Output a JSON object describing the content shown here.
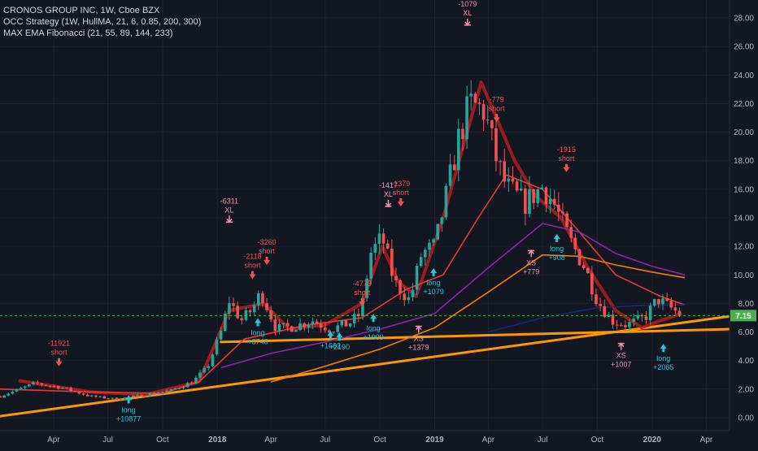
{
  "legend": {
    "title": "CRONOS GROUP INC, 1W, Cboe BZX",
    "indicator1": "OCC Strategy (1W, HullMA, 21, 6, 0.85, 200, 300)",
    "indicator2": "MAX EMA Fibonacci (21, 55, 89, 144, 233)"
  },
  "colors": {
    "background": "#131722",
    "grid": "#1e2230",
    "axis_text": "#b2b5be",
    "up": "#26a69a",
    "down": "#ef5350",
    "hull": "#b71c1c",
    "ema21": "#e53935",
    "ema55": "#8e24aa",
    "ema89": "#f57c00",
    "ema144": "#1a237e",
    "trendline": "#ff9800",
    "price_line": "#4caf50",
    "long_label": "#26c6da",
    "short_label": "#ef5350",
    "exit_label": "#f48fb1"
  },
  "chart_data": {
    "type": "candlestick",
    "symbol": "CRONOS GROUP INC",
    "interval": "1W",
    "exchange": "Cboe BZX",
    "y_axis": {
      "min": -0.8,
      "max": 28.8,
      "ticks": [
        "28.00",
        "26.00",
        "24.00",
        "22.00",
        "20.00",
        "18.00",
        "16.00",
        "14.00",
        "12.00",
        "10.00",
        "8.00",
        "6.00",
        "4.00",
        "2.00",
        "0.00"
      ]
    },
    "x_axis": {
      "tick_labels": [
        "Apr",
        "Jul",
        "Oct",
        "2018",
        "Apr",
        "Jul",
        "Oct",
        "2019",
        "Apr",
        "Jul",
        "Oct",
        "2020",
        "Apr"
      ],
      "tick_dates": [
        "2017-04-01",
        "2017-07-01",
        "2017-10-01",
        "2018-01-01",
        "2018-04-01",
        "2018-07-01",
        "2018-10-01",
        "2019-01-01",
        "2019-04-01",
        "2019-07-01",
        "2019-10-01",
        "2020-01-01",
        "2020-04-01"
      ],
      "start_date": "2017-01-01",
      "end_date": "2020-05-10"
    },
    "last_price": 7.15,
    "last_price_label": "7.15",
    "price_path": [
      [
        "2017-01-01",
        1.5
      ],
      [
        "2017-03-01",
        2.4
      ],
      [
        "2017-04-15",
        2.1
      ],
      [
        "2017-06-01",
        1.5
      ],
      [
        "2017-07-15",
        1.3
      ],
      [
        "2017-09-01",
        1.6
      ],
      [
        "2017-10-15",
        1.9
      ],
      [
        "2017-11-20",
        2.5
      ],
      [
        "2017-12-15",
        3.5
      ],
      [
        "2018-01-07",
        6.0
      ],
      [
        "2018-01-21",
        8.2
      ],
      [
        "2018-02-10",
        6.8
      ],
      [
        "2018-03-01",
        7.6
      ],
      [
        "2018-03-15",
        8.8
      ],
      [
        "2018-04-10",
        6.2
      ],
      [
        "2018-05-10",
        6.4
      ],
      [
        "2018-06-10",
        6.8
      ],
      [
        "2018-07-10",
        6.2
      ],
      [
        "2018-08-10",
        6.6
      ],
      [
        "2018-08-30",
        7.3
      ],
      [
        "2018-09-15",
        11.5
      ],
      [
        "2018-10-05",
        12.6
      ],
      [
        "2018-10-25",
        9.5
      ],
      [
        "2018-11-20",
        8.2
      ],
      [
        "2018-12-10",
        11.5
      ],
      [
        "2019-01-01",
        12.0
      ],
      [
        "2019-01-20",
        15.5
      ],
      [
        "2019-02-10",
        19.5
      ],
      [
        "2019-03-01",
        22.0
      ],
      [
        "2019-03-25",
        21.5
      ],
      [
        "2019-04-15",
        18.0
      ],
      [
        "2019-05-01",
        16.2
      ],
      [
        "2019-06-01",
        15.0
      ],
      [
        "2019-07-01",
        16.2
      ],
      [
        "2019-07-20",
        15.0
      ],
      [
        "2019-08-15",
        12.5
      ],
      [
        "2019-09-10",
        10.5
      ],
      [
        "2019-10-01",
        8.2
      ],
      [
        "2019-10-25",
        6.8
      ],
      [
        "2019-11-20",
        6.5
      ],
      [
        "2019-12-20",
        7.0
      ],
      [
        "2020-01-10",
        8.3
      ],
      [
        "2020-02-20",
        7.15
      ]
    ],
    "series": [
      {
        "name": "HullMA",
        "type": "hull",
        "points": [
          [
            "2017-02-01",
            2.6
          ],
          [
            "2017-06-01",
            1.8
          ],
          [
            "2017-09-01",
            1.6
          ],
          [
            "2017-12-01",
            2.5
          ],
          [
            "2018-01-21",
            7.5
          ],
          [
            "2018-03-20",
            8.0
          ],
          [
            "2018-05-01",
            6.2
          ],
          [
            "2018-07-01",
            6.5
          ],
          [
            "2018-09-01",
            8.0
          ],
          [
            "2018-10-05",
            12.0
          ],
          [
            "2018-11-01",
            9.5
          ],
          [
            "2018-12-01",
            8.5
          ],
          [
            "2019-01-15",
            14.0
          ],
          [
            "2019-03-20",
            23.5
          ],
          [
            "2019-05-15",
            18.0
          ],
          [
            "2019-06-20",
            15.5
          ],
          [
            "2019-08-01",
            14.0
          ],
          [
            "2019-09-15",
            10.5
          ],
          [
            "2019-11-01",
            7.5
          ],
          [
            "2019-12-15",
            6.3
          ],
          [
            "2020-01-15",
            6.8
          ],
          [
            "2020-02-20",
            7.3
          ]
        ]
      },
      {
        "name": "EMA 21",
        "type": "ema",
        "points": [
          [
            "2017-01-01",
            2.0
          ],
          [
            "2017-06-01",
            1.8
          ],
          [
            "2017-10-01",
            1.7
          ],
          [
            "2017-12-01",
            2.5
          ],
          [
            "2018-02-15",
            5.5
          ],
          [
            "2018-06-01",
            6.5
          ],
          [
            "2018-09-01",
            7.0
          ],
          [
            "2018-11-15",
            9.0
          ],
          [
            "2019-01-15",
            10.0
          ],
          [
            "2019-03-15",
            14.0
          ],
          [
            "2019-05-01",
            17.0
          ],
          [
            "2019-07-01",
            16.0
          ],
          [
            "2019-09-01",
            13.0
          ],
          [
            "2019-11-01",
            10.0
          ],
          [
            "2020-01-15",
            8.5
          ],
          [
            "2020-02-25",
            7.9
          ]
        ]
      },
      {
        "name": "EMA 55",
        "type": "ema",
        "points": [
          [
            "2018-01-07",
            3.5
          ],
          [
            "2018-04-01",
            4.5
          ],
          [
            "2018-07-01",
            5.3
          ],
          [
            "2018-10-01",
            6.2
          ],
          [
            "2019-01-01",
            7.3
          ],
          [
            "2019-04-01",
            10.5
          ],
          [
            "2019-07-01",
            13.6
          ],
          [
            "2019-09-01",
            13.0
          ],
          [
            "2019-11-01",
            11.5
          ],
          [
            "2020-01-01",
            10.6
          ],
          [
            "2020-02-25",
            10.0
          ]
        ]
      },
      {
        "name": "EMA 89",
        "type": "ema",
        "points": [
          [
            "2018-04-01",
            2.5
          ],
          [
            "2018-07-01",
            3.6
          ],
          [
            "2018-10-01",
            4.8
          ],
          [
            "2019-01-01",
            6.3
          ],
          [
            "2019-04-01",
            8.8
          ],
          [
            "2019-07-01",
            11.4
          ],
          [
            "2019-09-01",
            11.3
          ],
          [
            "2019-11-01",
            10.7
          ],
          [
            "2020-01-01",
            10.2
          ],
          [
            "2020-02-25",
            9.8
          ]
        ]
      },
      {
        "name": "EMA 144",
        "type": "ema",
        "points": [
          [
            "2019-04-01",
            6.0
          ],
          [
            "2019-07-01",
            7.0
          ],
          [
            "2019-10-01",
            7.7
          ],
          [
            "2020-01-01",
            7.9
          ],
          [
            "2020-02-25",
            7.9
          ]
        ]
      }
    ],
    "trendlines": [
      {
        "from": [
          "2017-01-01",
          0.1
        ],
        "to": [
          "2020-05-10",
          7.1
        ]
      },
      {
        "from": [
          "2018-01-07",
          5.3
        ],
        "to": [
          "2020-05-10",
          6.2
        ]
      }
    ],
    "annotations": [
      {
        "kind": "short",
        "date": "2017-04-10",
        "value": 3.6,
        "lines": [
          "-11921",
          "short"
        ]
      },
      {
        "kind": "long",
        "date": "2017-08-05",
        "value": 1.0,
        "lines": [
          "long",
          "+10877"
        ]
      },
      {
        "kind": "exit",
        "date": "2018-01-21",
        "value": 13.7,
        "lines": [
          "-6311",
          "XL"
        ]
      },
      {
        "kind": "short",
        "date": "2018-03-01",
        "value": 9.7,
        "lines": [
          "-2118",
          "short"
        ]
      },
      {
        "kind": "short",
        "date": "2018-03-25",
        "value": 10.7,
        "lines": [
          "-3260",
          "short"
        ]
      },
      {
        "kind": "long",
        "date": "2018-03-10",
        "value": 6.4,
        "lines": [
          "long",
          "+3746"
        ]
      },
      {
        "kind": "long",
        "date": "2018-07-10",
        "value": 5.5,
        "lines": [
          "+1662"
        ]
      },
      {
        "kind": "long",
        "date": "2018-07-25",
        "value": 5.4,
        "lines": [
          "+2190"
        ]
      },
      {
        "kind": "short",
        "date": "2018-09-01",
        "value": 7.8,
        "lines": [
          "-4773",
          "short"
        ]
      },
      {
        "kind": "long",
        "date": "2018-09-20",
        "value": 6.7,
        "lines": [
          "long",
          "+1999"
        ]
      },
      {
        "kind": "exit",
        "date": "2018-10-15",
        "value": 14.8,
        "lines": [
          "-1417",
          "XL"
        ]
      },
      {
        "kind": "short",
        "date": "2018-11-05",
        "value": 14.8,
        "lines": [
          "-1379",
          "short"
        ]
      },
      {
        "kind": "exit",
        "date": "2018-12-05",
        "value": 6.4,
        "lines": [
          "XS",
          "+1379"
        ]
      },
      {
        "kind": "long",
        "date": "2018-12-30",
        "value": 9.9,
        "lines": [
          "long",
          "+1079"
        ]
      },
      {
        "kind": "exit",
        "date": "2019-02-25",
        "value": 27.5,
        "lines": [
          "-1079",
          "XL"
        ]
      },
      {
        "kind": "short",
        "date": "2019-04-15",
        "value": 20.7,
        "lines": [
          "-779",
          "short"
        ]
      },
      {
        "kind": "exit",
        "date": "2019-06-12",
        "value": 11.7,
        "lines": [
          "XS",
          "+779"
        ]
      },
      {
        "kind": "long",
        "date": "2019-07-25",
        "value": 12.3,
        "lines": [
          "long",
          "+908"
        ]
      },
      {
        "kind": "short",
        "date": "2019-08-10",
        "value": 17.2,
        "lines": [
          "-1915",
          "short"
        ]
      },
      {
        "kind": "exit",
        "date": "2019-11-10",
        "value": 5.2,
        "lines": [
          "XS",
          "+1007"
        ]
      },
      {
        "kind": "long",
        "date": "2020-01-20",
        "value": 4.6,
        "lines": [
          "long",
          "+2065"
        ]
      }
    ]
  }
}
